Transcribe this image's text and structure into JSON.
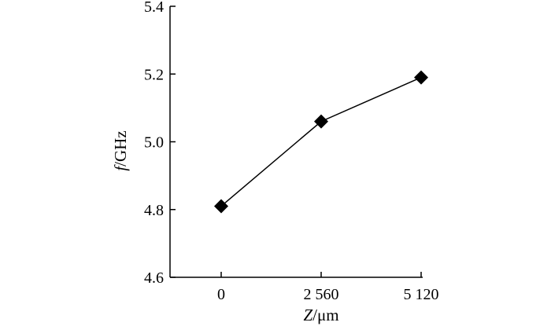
{
  "chart_data": {
    "type": "line",
    "x": [
      0,
      2560,
      5120
    ],
    "x_tick_labels": [
      "0",
      "2 560",
      "5 120"
    ],
    "values": [
      4.81,
      5.06,
      5.19
    ],
    "xlabel_var": "Z",
    "xlabel_unit": "/μm",
    "ylabel_var": "f",
    "ylabel_unit": "/GHz",
    "ylim": [
      4.6,
      5.4
    ],
    "y_ticks": [
      4.6,
      4.8,
      5.0,
      5.2,
      5.4
    ],
    "y_tick_labels": [
      "4.6",
      "4.8",
      "5.0",
      "5.2",
      "5.4"
    ],
    "marker": "diamond",
    "line_color": "#000000",
    "marker_color": "#000000",
    "grid": false,
    "legend": "none"
  }
}
